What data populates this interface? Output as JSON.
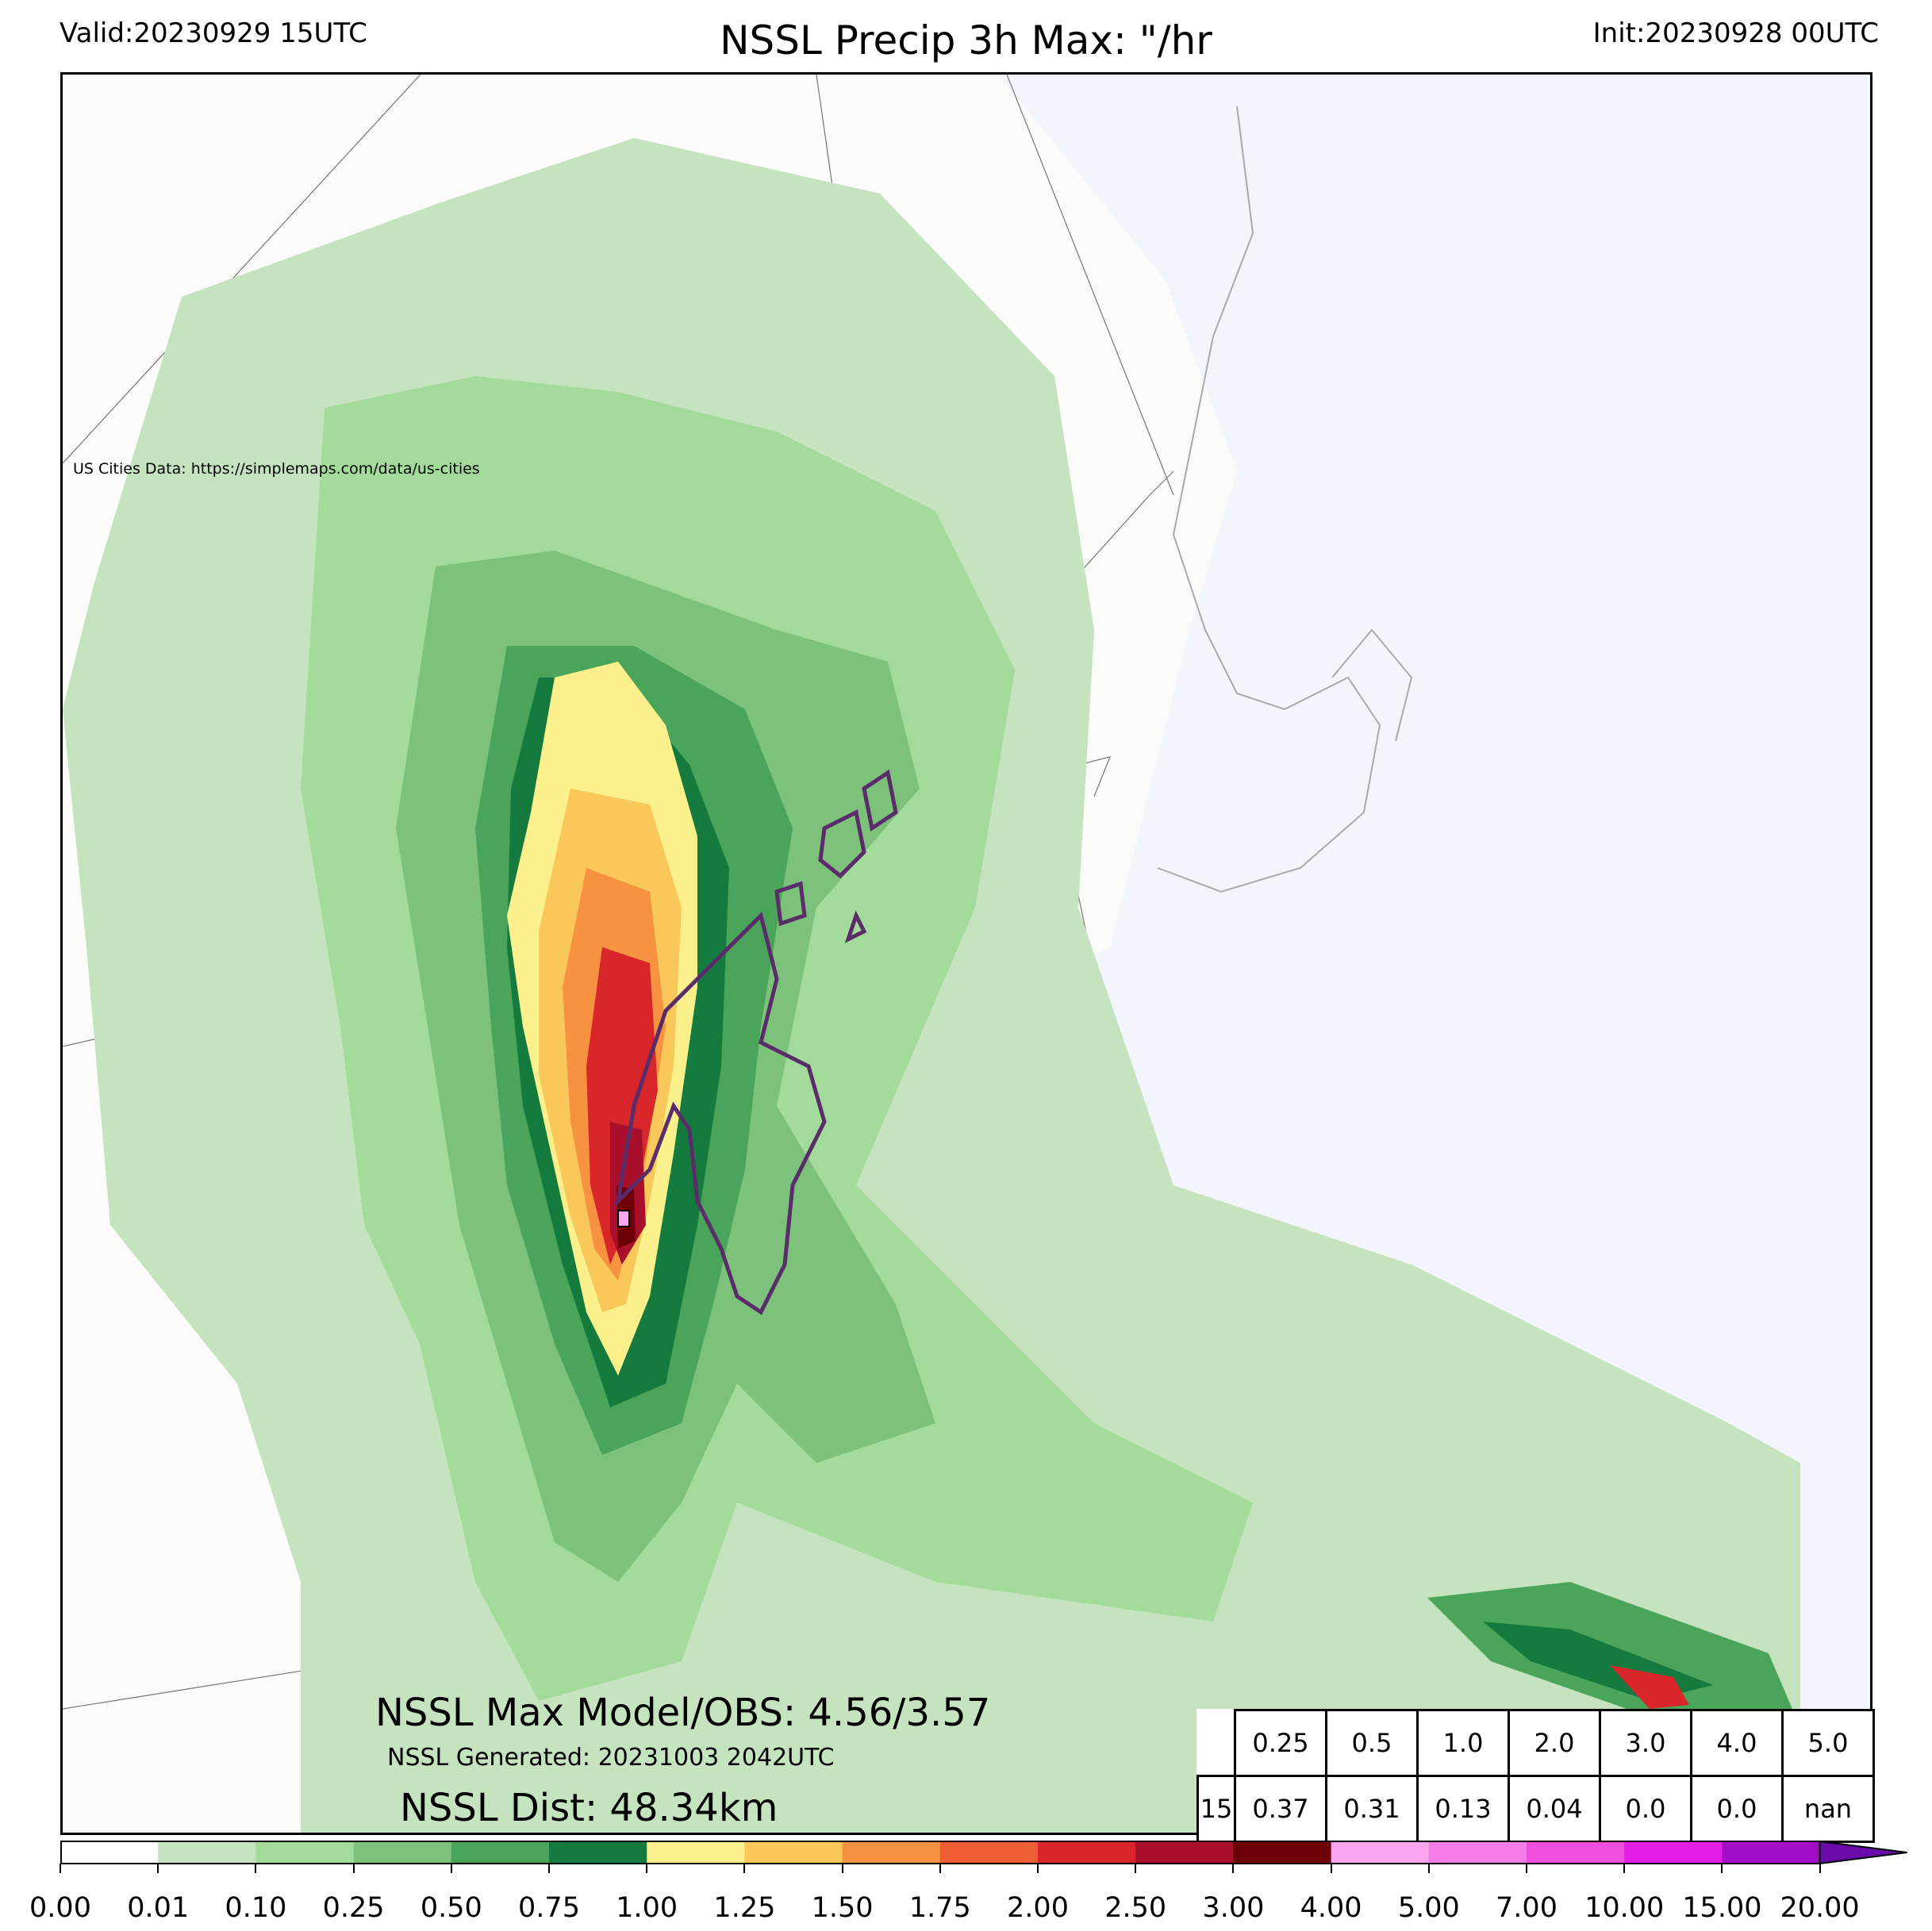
{
  "header": {
    "valid": "Valid:20230929 15UTC",
    "title": "NSSL Precip 3h Max: \"/hr",
    "init": "Init:20230928 00UTC"
  },
  "map": {
    "credit": "US Cities Data: https://simplemaps.com/data/us-cities",
    "region": "Northeast United States",
    "legend_encoding": "filled contours of precipitation rate; purple contour outlines observed area"
  },
  "stats": {
    "max_model_obs": "NSSL Max Model/OBS: 4.56/3.57",
    "generated": "NSSL Generated: 20231003 2042UTC",
    "dist": "NSSL Dist: 48.34km"
  },
  "threshold_table": {
    "header": [
      "0.25",
      "0.5",
      "1.0",
      "2.0",
      "3.0",
      "4.0",
      "5.0"
    ],
    "row_label": "15",
    "values": [
      "0.37",
      "0.31",
      "0.13",
      "0.04",
      "0.0",
      "0.0",
      "nan"
    ]
  },
  "colorbar": {
    "ticks": [
      "0.00",
      "0.01",
      "0.10",
      "0.25",
      "0.50",
      "0.75",
      "1.00",
      "1.25",
      "1.50",
      "1.75",
      "2.00",
      "2.50",
      "3.00",
      "4.00",
      "5.00",
      "7.00",
      "10.00",
      "15.00",
      "20.00"
    ],
    "colors": [
      "#ffffff",
      "#c6e3c0",
      "#a3dc9a",
      "#7dc27a",
      "#4aa45a",
      "#147a3e",
      "#fbf08c",
      "#f9c75a",
      "#f69240",
      "#ef5d34",
      "#d9262b",
      "#a90f2a",
      "#6e0008",
      "#f8a5ee",
      "#f57de7",
      "#f04fdd",
      "#e21ee4",
      "#a20ec7"
    ],
    "extend_color": "#6a0aa8"
  },
  "colors": {
    "water": "#f2f6fc",
    "land": "#fbfbfa",
    "observed_contour": "#5a2d6a"
  }
}
